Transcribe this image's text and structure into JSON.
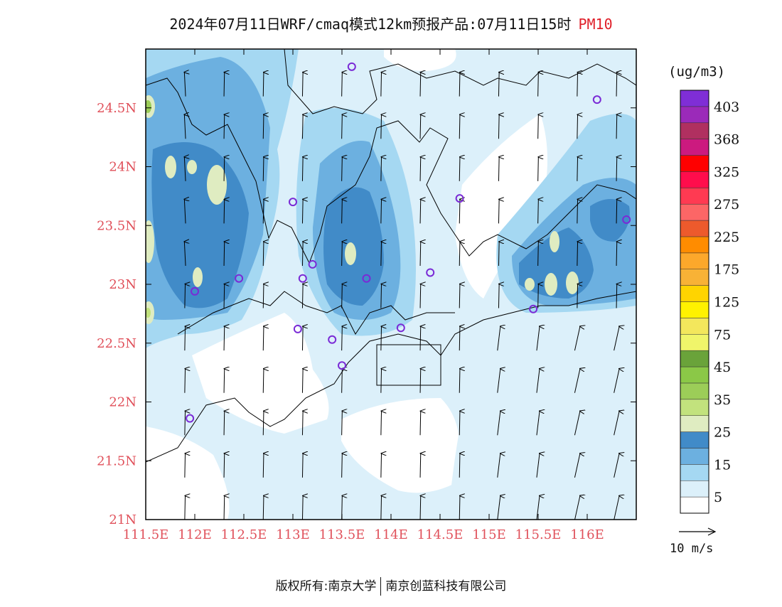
{
  "title": {
    "text": "2024年07月11日WRF/cmaq模式12km预报产品:07月11日15时",
    "variable": "PM10"
  },
  "map": {
    "lon_range": [
      111.5,
      116.5
    ],
    "lat_range": [
      21.0,
      25.0
    ],
    "x_ticks": [
      "111.5E",
      "112E",
      "112.5E",
      "113E",
      "113.5E",
      "114E",
      "114.5E",
      "115E",
      "115.5E",
      "116E"
    ],
    "y_ticks": [
      "21N",
      "21.5N",
      "22N",
      "22.5N",
      "23N",
      "23.5N",
      "24N",
      "24.5N"
    ],
    "wind_arrows": "mostly-north",
    "stations": [
      [
        113.6,
        24.85
      ],
      [
        116.1,
        24.57
      ],
      [
        113.0,
        23.7
      ],
      [
        114.7,
        23.73
      ],
      [
        116.4,
        23.55
      ],
      [
        112.45,
        23.05
      ],
      [
        113.1,
        23.05
      ],
      [
        113.2,
        23.17
      ],
      [
        113.75,
        23.05
      ],
      [
        114.4,
        23.1
      ],
      [
        112.0,
        22.94
      ],
      [
        113.05,
        22.62
      ],
      [
        113.4,
        22.53
      ],
      [
        114.1,
        22.63
      ],
      [
        113.5,
        22.31
      ],
      [
        115.45,
        22.79
      ],
      [
        111.95,
        21.86
      ]
    ]
  },
  "legend": {
    "unit": "(ug/m3)",
    "colors": [
      "#ffffff",
      "#dcf0fa",
      "#a5d8f2",
      "#6cb0e0",
      "#418bc8",
      "#dfecc1",
      "#c2e27d",
      "#9ccd58",
      "#8bc847",
      "#6aa33a",
      "#f0f56a",
      "#f3e75c",
      "#fff200",
      "#ffd400",
      "#f8b236",
      "#fca82b",
      "#ff8c00",
      "#ed5a2c",
      "#fc6666",
      "#ff3a52",
      "#ff0d4c",
      "#ff0000",
      "#cc1a7f",
      "#b03060",
      "#9b2ab9",
      "#7f2ed6"
    ],
    "labels": [
      "5",
      "15",
      "25",
      "35",
      "45",
      "75",
      "125",
      "175",
      "225",
      "275",
      "325",
      "368",
      "403"
    ],
    "wind_reference": "10 m/s"
  },
  "copyright": {
    "left": "版权所有:南京大学",
    "right": "南京创蓝科技有限公司"
  }
}
